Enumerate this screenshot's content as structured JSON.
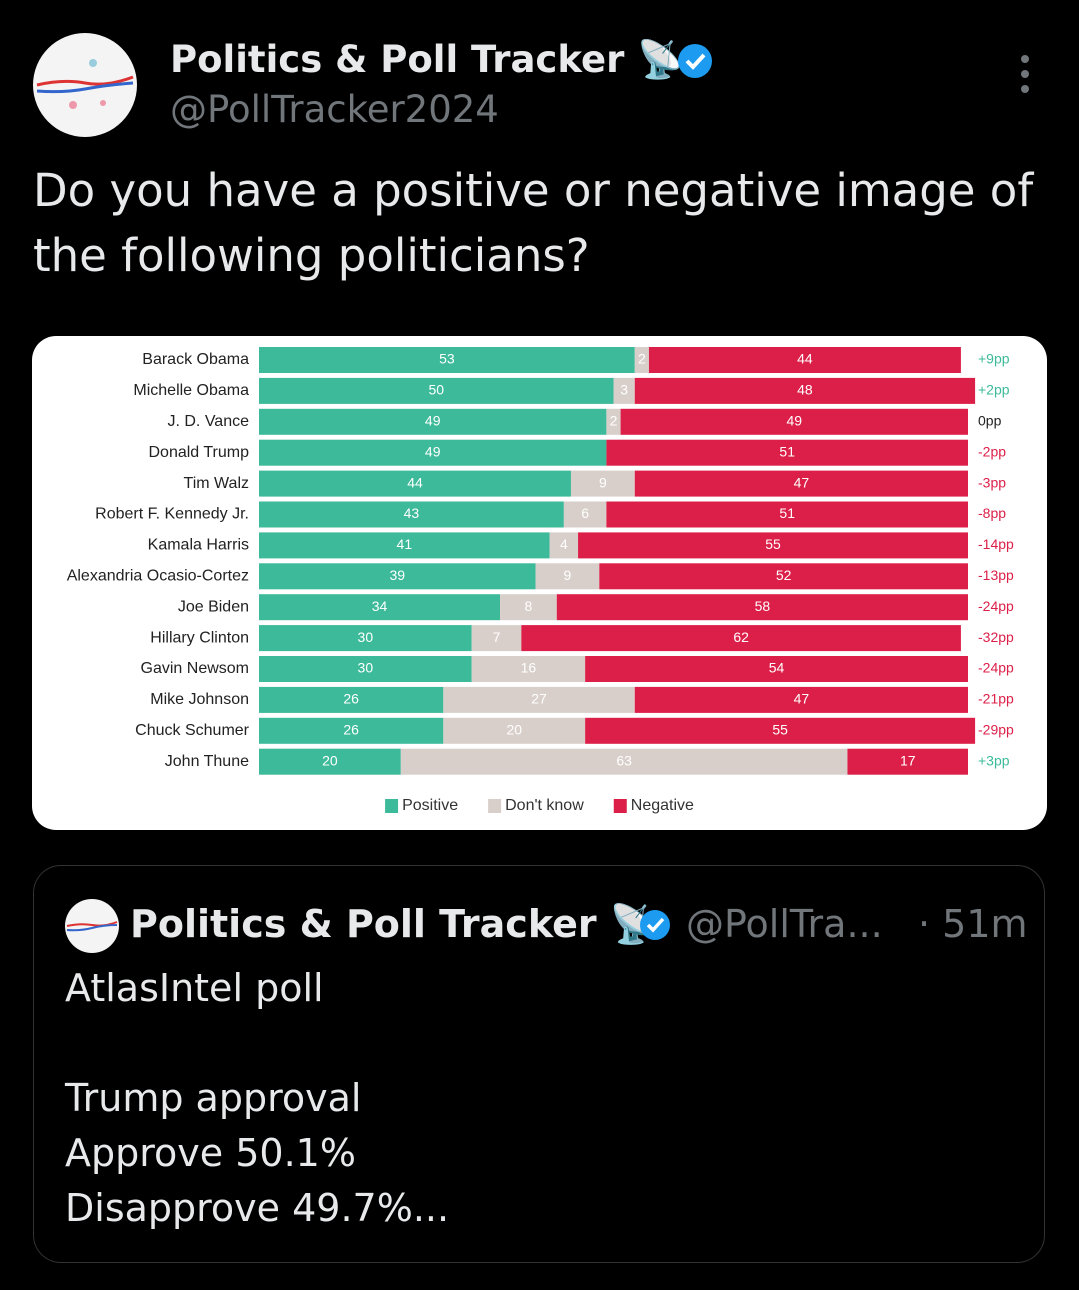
{
  "tweet": {
    "name": "Politics & Poll Tracker",
    "emoji": "📡",
    "handle": "@PollTracker2024",
    "text": "Do you have a positive or negative image of the following politicians?"
  },
  "chart_data": {
    "type": "stacked-hbar",
    "categories": [
      "Barack Obama",
      "Michelle Obama",
      "J. D. Vance",
      "Donald Trump",
      "Tim Walz",
      "Robert F. Kennedy Jr.",
      "Kamala Harris",
      "Alexandria Ocasio-Cortez",
      "Joe Biden",
      "Hillary Clinton",
      "Gavin Newsom",
      "Mike Johnson",
      "Chuck Schumer",
      "John Thune"
    ],
    "series": [
      {
        "name": "Positive",
        "color": "#3dba9a",
        "values": [
          53,
          50,
          49,
          49,
          44,
          43,
          41,
          39,
          34,
          30,
          30,
          26,
          26,
          20
        ]
      },
      {
        "name": "Don't know",
        "color": "#d8cfca",
        "values": [
          2,
          3,
          2,
          0,
          9,
          6,
          4,
          9,
          8,
          7,
          16,
          27,
          20,
          63
        ]
      },
      {
        "name": "Negative",
        "color": "#dc1f48",
        "values": [
          44,
          48,
          49,
          51,
          47,
          51,
          55,
          52,
          58,
          62,
          54,
          47,
          55,
          17
        ]
      }
    ],
    "net_labels": [
      "+9pp",
      "+2pp",
      "0pp",
      "-2pp",
      "-3pp",
      "-8pp",
      "-14pp",
      "-13pp",
      "-24pp",
      "-32pp",
      "-24pp",
      "-21pp",
      "-29pp",
      "+3pp"
    ],
    "xlim": [
      0,
      100
    ]
  },
  "quote": {
    "name": "Politics & Poll Tracker",
    "emoji": "📡",
    "handle": "@PollTra...",
    "time": "· 51m",
    "lines": [
      "AtlasIntel poll",
      "Trump approval",
      "Approve 50.1%",
      "Disapprove 49.7%..."
    ]
  }
}
